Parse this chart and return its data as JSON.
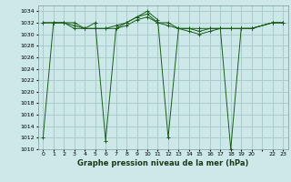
{
  "title": "Graphe pression niveau de la mer (hPa)",
  "bg_color": "#cce8e8",
  "grid_color": "#aacccc",
  "line_color": "#1a5c1a",
  "xlim": [
    -0.5,
    23.5
  ],
  "ylim": [
    1010,
    1035
  ],
  "yticks": [
    1010,
    1012,
    1014,
    1016,
    1018,
    1020,
    1022,
    1024,
    1026,
    1028,
    1030,
    1032,
    1034
  ],
  "xtick_labels": [
    "0",
    "1",
    "2",
    "3",
    "4",
    "5",
    "6",
    "7",
    "8",
    "9",
    "10",
    "11",
    "12",
    "13",
    "14",
    "15",
    "16",
    "17",
    "18",
    "19",
    "20",
    "",
    "22",
    "23"
  ],
  "xtick_pos": [
    0,
    1,
    2,
    3,
    4,
    5,
    6,
    7,
    8,
    9,
    10,
    11,
    12,
    13,
    14,
    15,
    16,
    17,
    18,
    19,
    20,
    21,
    22,
    23
  ],
  "series": [
    {
      "x": [
        0,
        1,
        2,
        3,
        4,
        5,
        6,
        7,
        8,
        9,
        10,
        11,
        12,
        13,
        14,
        15,
        16,
        17,
        18,
        19,
        20,
        22,
        23
      ],
      "y": [
        1032,
        1032,
        1032,
        1031,
        1031,
        1032,
        1011.5,
        1031,
        1032,
        1033,
        1034,
        1032.5,
        1012,
        1031,
        1031,
        1030.5,
        1031,
        1031,
        1010,
        1031,
        1031,
        1032,
        1032
      ]
    },
    {
      "x": [
        0,
        1,
        2,
        3,
        4,
        5,
        6,
        7,
        8,
        9,
        10,
        11,
        12,
        13,
        14,
        15,
        16,
        17,
        18,
        19,
        20,
        22,
        23
      ],
      "y": [
        1012,
        1032,
        1032,
        1032,
        1031,
        1031,
        1031,
        1031,
        1031.5,
        1032.5,
        1033,
        1032,
        1032,
        1031,
        1031,
        1031,
        1031,
        1031,
        1031,
        1031,
        1031,
        1032,
        1032
      ]
    },
    {
      "x": [
        0,
        1,
        2,
        3,
        4,
        5,
        6,
        7,
        8,
        9,
        10,
        11,
        12,
        13,
        14,
        15,
        16,
        17,
        18,
        19,
        20,
        22,
        23
      ],
      "y": [
        1032,
        1032,
        1032,
        1031.5,
        1031,
        1031,
        1031,
        1031.5,
        1032,
        1033,
        1033.5,
        1032,
        1031.5,
        1031,
        1030.5,
        1030,
        1030.5,
        1031,
        1031,
        1031,
        1031,
        1032,
        1032
      ]
    }
  ],
  "ylabel_fontsize": 5,
  "xlabel_fontsize": 6,
  "tick_fontsize": 4.5
}
